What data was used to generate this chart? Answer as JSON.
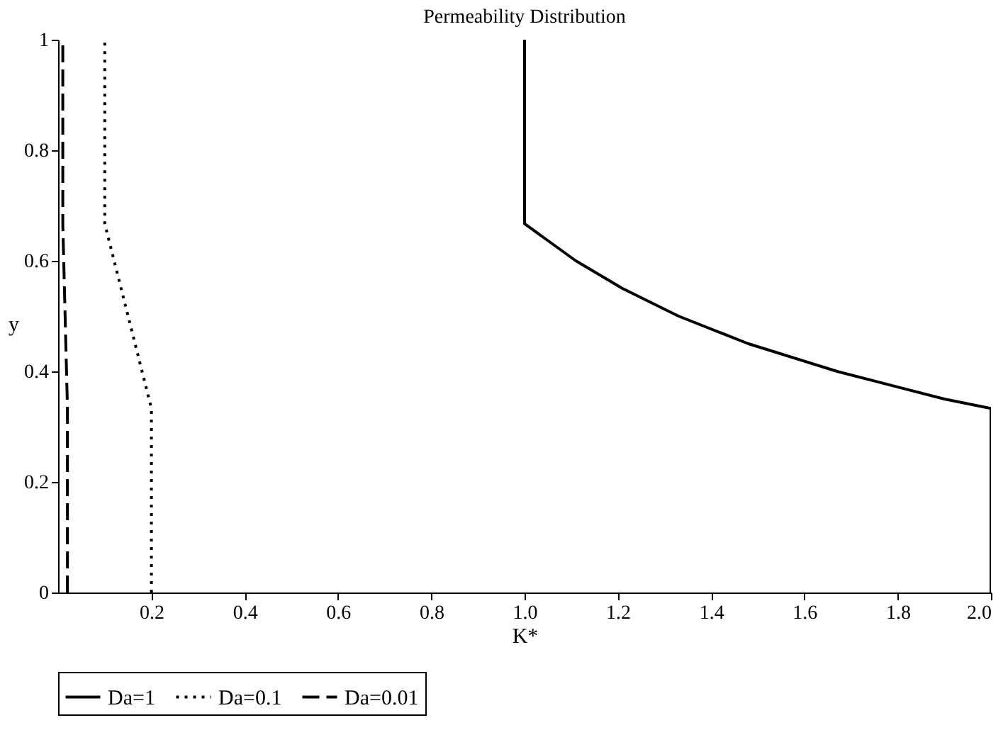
{
  "chart_data": {
    "type": "line",
    "title": "Permeability Distribution",
    "xlabel": "K*",
    "ylabel": "y",
    "xlim": [
      0,
      2
    ],
    "ylim": [
      0,
      1
    ],
    "xticks": [
      0.2,
      0.4,
      0.6,
      0.8,
      {
        "value": 1,
        "label": "1.0"
      },
      1.2,
      1.4,
      1.6,
      1.8,
      {
        "value": 2,
        "label": "2.0"
      }
    ],
    "yticks": [
      0,
      0.2,
      0.4,
      0.6,
      0.8,
      1
    ],
    "grid": false,
    "legend": "bottom",
    "series": [
      {
        "name": "Da=1",
        "color": "#000000",
        "line_style": "solid",
        "x": [
          2,
          2,
          1.9,
          1.67,
          1.48,
          1.33,
          1.21,
          1.11,
          1,
          1
        ],
        "values": [
          0,
          0.333,
          0.35,
          0.4,
          0.45,
          0.5,
          0.55,
          0.6,
          0.667,
          1
        ]
      },
      {
        "name": "Da=0.1",
        "color": "#000000",
        "line_style": "dotted",
        "x": [
          0.2,
          0.2,
          0.1,
          0.1
        ],
        "values": [
          0,
          0.333,
          0.667,
          1
        ]
      },
      {
        "name": "Da=0.01",
        "color": "#000000",
        "line_style": "dashed",
        "x": [
          0.02,
          0.02,
          0.01,
          0.01
        ],
        "values": [
          0,
          0.333,
          0.667,
          1
        ]
      }
    ]
  }
}
